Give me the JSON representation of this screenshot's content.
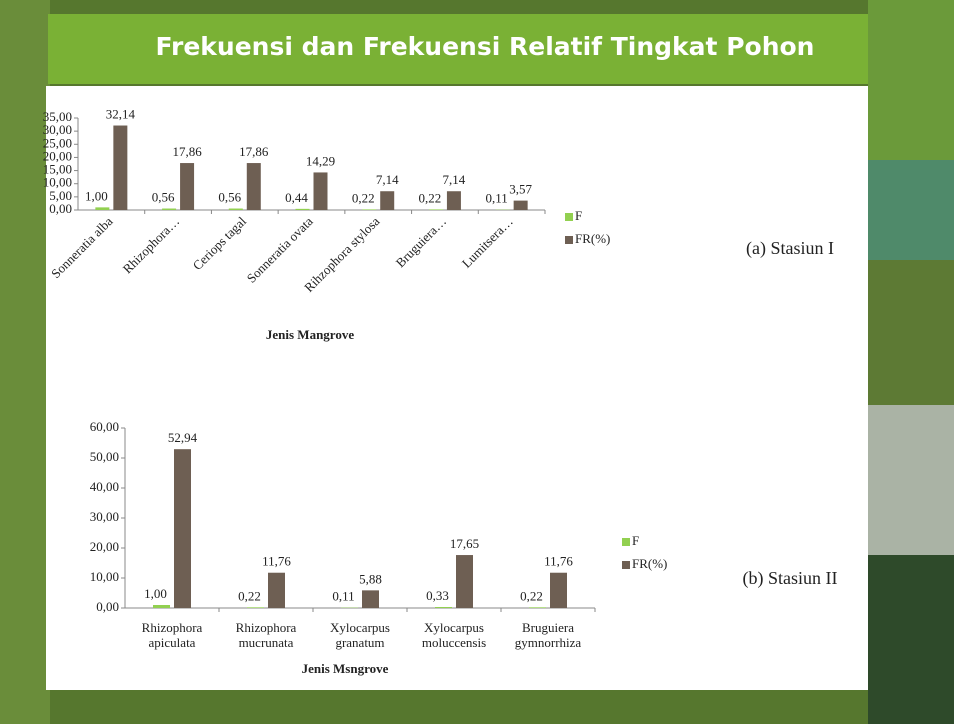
{
  "title": "Frekuensi dan Frekuensi Relatif Tingkat Pohon",
  "chart_data": [
    {
      "type": "bar",
      "panel_label": "(a) Stasiun I",
      "xlabel": "Jenis Mangrove",
      "categories": [
        "Sonneratia alba",
        "Rhizophora…",
        "Ceriops tagal",
        "Sonneratia ovata",
        "Rihzophora stylosa",
        "Bruguiera…",
        "Lumitsera…"
      ],
      "series": [
        {
          "name": "F",
          "color": "#92d050",
          "values": [
            1.0,
            0.56,
            0.56,
            0.44,
            0.22,
            0.22,
            0.11
          ],
          "value_labels": [
            "1,00",
            "0,56",
            "0,56",
            "0,44",
            "0,22",
            "0,22",
            "0,11"
          ]
        },
        {
          "name": "FR(%)",
          "color": "#6e5f53",
          "values": [
            32.14,
            17.86,
            17.86,
            14.29,
            7.14,
            7.14,
            3.57
          ],
          "value_labels": [
            "32,14",
            "17,86",
            "17,86",
            "14,29",
            "7,14",
            "7,14",
            "3,57"
          ]
        }
      ],
      "ylim": [
        0,
        35
      ],
      "yticks": [
        {
          "value": 0,
          "label": "0,00"
        },
        {
          "value": 5,
          "label": "5,00"
        },
        {
          "value": 10,
          "label": "10,00"
        },
        {
          "value": 15,
          "label": "15,00"
        },
        {
          "value": 20,
          "label": "20,00"
        },
        {
          "value": 25,
          "label": "25,00"
        },
        {
          "value": 30,
          "label": "30,00"
        },
        {
          "value": 35,
          "label": "35,00"
        }
      ],
      "legend": "right"
    },
    {
      "type": "bar",
      "panel_label": "(b) Stasiun II",
      "xlabel": "Jenis Msngrove",
      "categories": [
        "Rhizophora apiculata",
        "Rhizophora mucrunata",
        "Xylocarpus granatum",
        "Xylocarpus moluccensis",
        "Bruguiera gymnorrhiza"
      ],
      "series": [
        {
          "name": "F",
          "color": "#92d050",
          "values": [
            1.0,
            0.22,
            0.11,
            0.33,
            0.22
          ],
          "value_labels": [
            "1,00",
            "0,22",
            "0,11",
            "0,33",
            "0,22"
          ]
        },
        {
          "name": "FR(%)",
          "color": "#6e5f53",
          "values": [
            52.94,
            11.76,
            5.88,
            17.65,
            11.76
          ],
          "value_labels": [
            "52,94",
            "11,76",
            "5,88",
            "17,65",
            "11,76"
          ]
        }
      ],
      "ylim": [
        0,
        60
      ],
      "yticks": [
        {
          "value": 0,
          "label": "0,00"
        },
        {
          "value": 10,
          "label": "10,00"
        },
        {
          "value": 20,
          "label": "20,00"
        },
        {
          "value": 30,
          "label": "30,00"
        },
        {
          "value": 40,
          "label": "40,00"
        },
        {
          "value": 50,
          "label": "50,00"
        },
        {
          "value": 60,
          "label": "60,00"
        }
      ],
      "legend": "right"
    }
  ]
}
